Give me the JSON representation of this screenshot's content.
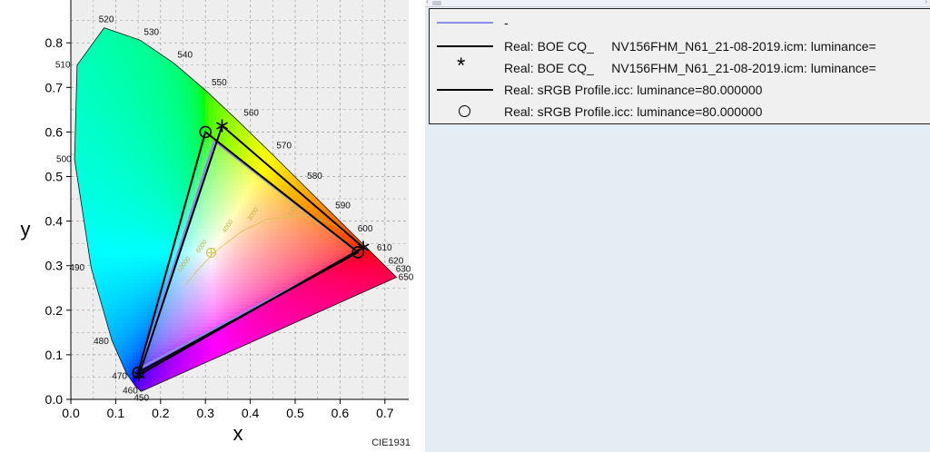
{
  "chart_data": {
    "type": "scatter",
    "title": "",
    "xlabel": "x",
    "ylabel": "y",
    "xlim": [
      0.0,
      0.75
    ],
    "ylim": [
      0.0,
      0.86
    ],
    "x_ticks": [
      "0.0",
      "0.1",
      "0.2",
      "0.3",
      "0.4",
      "0.5",
      "0.6",
      "0.7"
    ],
    "y_ticks": [
      "0.0",
      "0.1",
      "0.2",
      "0.3",
      "0.4",
      "0.5",
      "0.6",
      "0.7",
      "0.8"
    ],
    "x_tick_values": [
      0.0,
      0.1,
      0.2,
      0.3,
      0.4,
      0.5,
      0.6,
      0.7
    ],
    "y_tick_values": [
      0.0,
      0.1,
      0.2,
      0.3,
      0.4,
      0.5,
      0.6,
      0.7,
      0.8
    ],
    "grid": true,
    "corner_label": "CIE1931",
    "spectral_locus": [
      {
        "nm": 450,
        "x": 0.1566,
        "y": 0.0177
      },
      {
        "nm": 460,
        "x": 0.144,
        "y": 0.0297
      },
      {
        "nm": 470,
        "x": 0.1241,
        "y": 0.0578
      },
      {
        "nm": 480,
        "x": 0.0913,
        "y": 0.1327
      },
      {
        "nm": 490,
        "x": 0.0454,
        "y": 0.295
      },
      {
        "nm": 500,
        "x": 0.0082,
        "y": 0.5384
      },
      {
        "nm": 510,
        "x": 0.0139,
        "y": 0.7502
      },
      {
        "nm": 520,
        "x": 0.0743,
        "y": 0.8338
      },
      {
        "nm": 530,
        "x": 0.1547,
        "y": 0.8059
      },
      {
        "nm": 540,
        "x": 0.2296,
        "y": 0.7543
      },
      {
        "nm": 550,
        "x": 0.3016,
        "y": 0.6923
      },
      {
        "nm": 560,
        "x": 0.3731,
        "y": 0.6245
      },
      {
        "nm": 570,
        "x": 0.4441,
        "y": 0.5547
      },
      {
        "nm": 580,
        "x": 0.5125,
        "y": 0.4866
      },
      {
        "nm": 590,
        "x": 0.5752,
        "y": 0.4242
      },
      {
        "nm": 600,
        "x": 0.627,
        "y": 0.3725
      },
      {
        "nm": 610,
        "x": 0.6658,
        "y": 0.334
      },
      {
        "nm": 620,
        "x": 0.6915,
        "y": 0.3083
      },
      {
        "nm": 630,
        "x": 0.7079,
        "y": 0.292
      },
      {
        "nm": 650,
        "x": 0.726,
        "y": 0.274
      }
    ],
    "planckian_temps": [
      "1000",
      "2000",
      "3000",
      "4000",
      "6000",
      "10000"
    ],
    "series": [
      {
        "name": "-",
        "color": "#8a8ce8",
        "kind": "gamut-line",
        "points": [
          {
            "x": 0.64,
            "y": 0.33
          },
          {
            "x": 0.32,
            "y": 0.58
          },
          {
            "x": 0.155,
            "y": 0.07
          }
        ]
      },
      {
        "name": "Real: BOE CQ_     NV156FHM_N61_21-08-2019.icm: luminance=",
        "color": "#000000",
        "kind": "gamut-line",
        "points": [
          {
            "x": 0.652,
            "y": 0.341
          },
          {
            "x": 0.337,
            "y": 0.614
          },
          {
            "x": 0.152,
            "y": 0.055
          }
        ]
      },
      {
        "name": "Real: BOE CQ_     NV156FHM_N61_21-08-2019.icm: luminance=",
        "color": "#000000",
        "kind": "marker-star",
        "points": [
          {
            "x": 0.652,
            "y": 0.341
          },
          {
            "x": 0.337,
            "y": 0.614
          },
          {
            "x": 0.152,
            "y": 0.055
          }
        ]
      },
      {
        "name": "Real: sRGB Profile.icc: luminance=80.000000",
        "color": "#000000",
        "kind": "gamut-line",
        "points": [
          {
            "x": 0.64,
            "y": 0.33
          },
          {
            "x": 0.3,
            "y": 0.6
          },
          {
            "x": 0.15,
            "y": 0.06
          }
        ]
      },
      {
        "name": "Real: sRGB Profile.icc: luminance=80.000000",
        "color": "#000000",
        "kind": "marker-circle",
        "points": [
          {
            "x": 0.64,
            "y": 0.33
          },
          {
            "x": 0.3,
            "y": 0.6
          },
          {
            "x": 0.15,
            "y": 0.06
          }
        ]
      }
    ],
    "white_point": {
      "x": 0.3127,
      "y": 0.329
    }
  },
  "legend": {
    "entries": [
      {
        "symbol": "line",
        "color": "#8a8ce8",
        "text": "-"
      },
      {
        "symbol": "line",
        "color": "#000000",
        "text": "Real: BOE CQ_     NV156FHM_N61_21-08-2019.icm: luminance="
      },
      {
        "symbol": "star",
        "color": "#000000",
        "glyph": "*",
        "text": "Real: BOE CQ_     NV156FHM_N61_21-08-2019.icm: luminance="
      },
      {
        "symbol": "line",
        "color": "#000000",
        "text": "Real: sRGB Profile.icc: luminance=80.000000"
      },
      {
        "symbol": "circle",
        "color": "#000000",
        "text": "Real: sRGB Profile.icc: luminance=80.000000"
      }
    ]
  },
  "scrollbar": {
    "left_arrow": "‹",
    "right_arrow": "›"
  }
}
